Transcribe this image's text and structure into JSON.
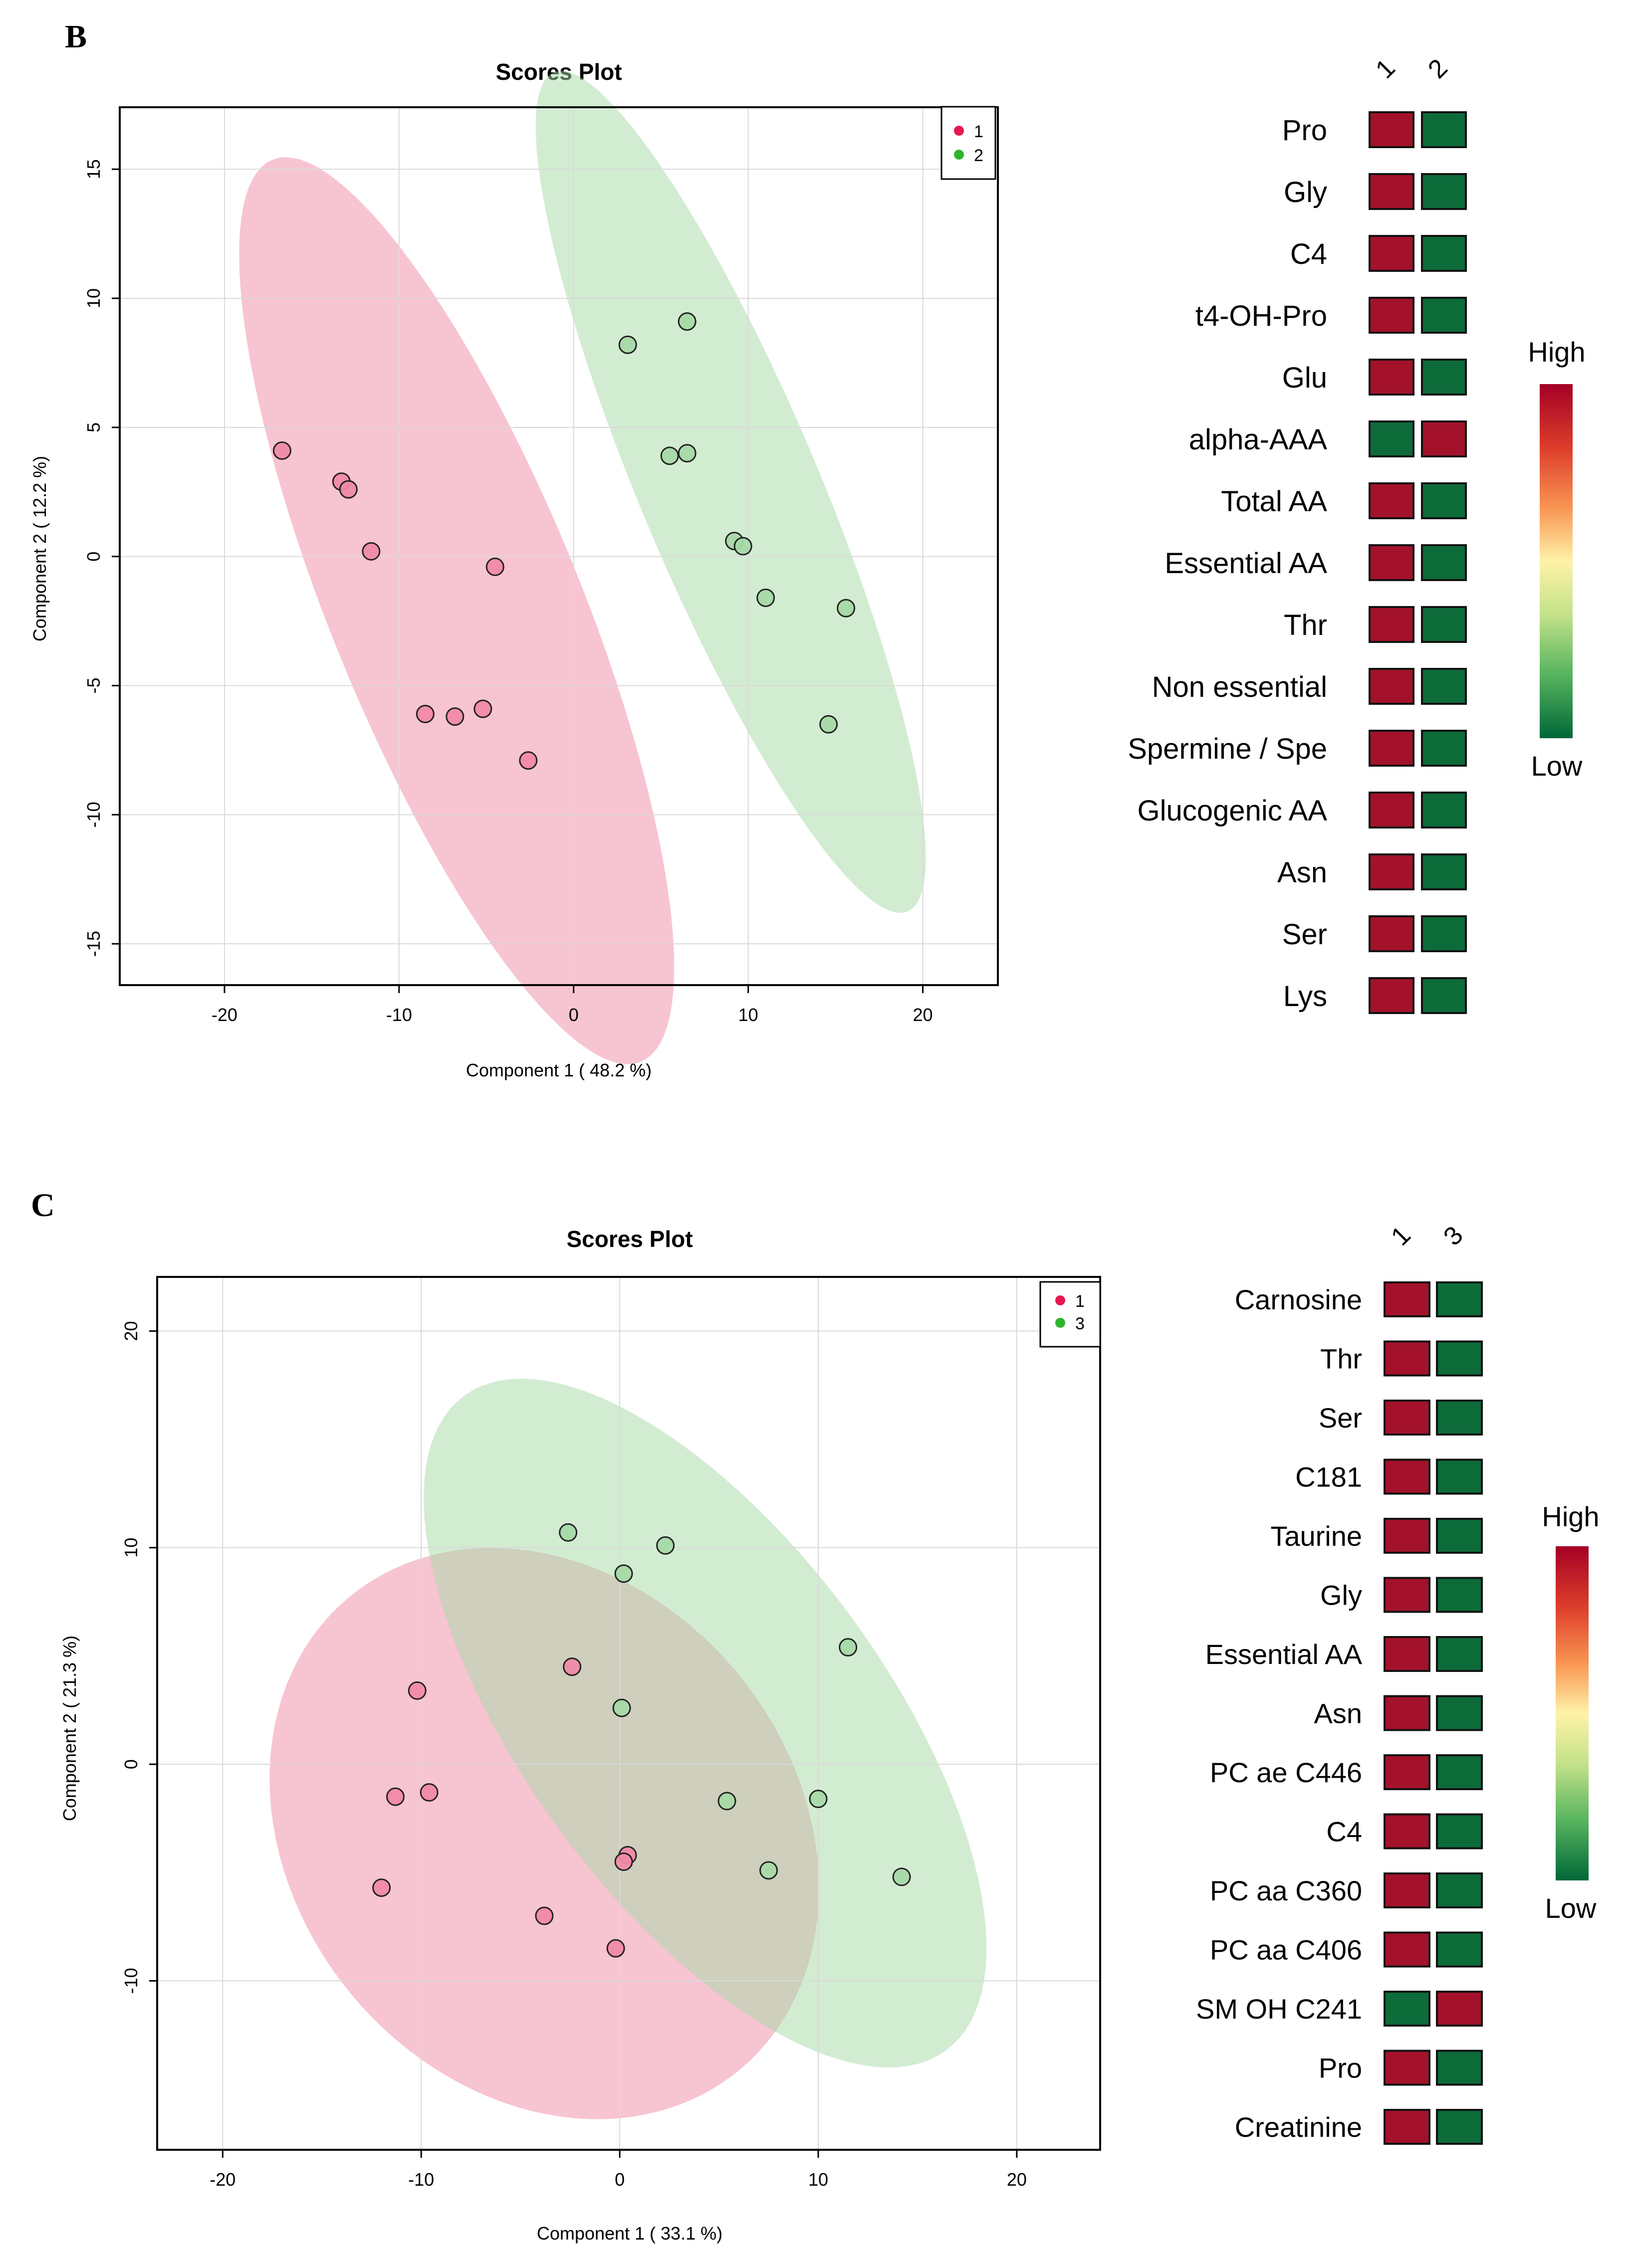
{
  "panels": [
    {
      "label": "B",
      "chart_data": {
        "type": "scatter",
        "title": "Scores Plot",
        "xlabel": "Component 1 ( 48.2 %)",
        "ylabel": "Component 2 ( 12.2 %)",
        "xlim": [
          -26,
          24.3
        ],
        "ylim": [
          -16.6,
          17.4
        ],
        "xticks": [
          -20,
          -10,
          0,
          10,
          20
        ],
        "yticks": [
          -15,
          -10,
          -5,
          0,
          5,
          10,
          15
        ],
        "grid": true,
        "legend_position": "top-right",
        "series": [
          {
            "name": "1",
            "color": "#e8174f",
            "ellipse_color": "#f08aa5",
            "points": [
              [
                -16.7,
                4.1
              ],
              [
                -13.3,
                2.9
              ],
              [
                -12.9,
                2.6
              ],
              [
                -11.6,
                0.2
              ],
              [
                -4.5,
                -0.4
              ],
              [
                -8.5,
                -6.1
              ],
              [
                -6.8,
                -6.2
              ],
              [
                -5.2,
                -5.9
              ],
              [
                -2.6,
                -7.9
              ]
            ],
            "ellipse": {
              "cx": -6.7,
              "cy": -2.1,
              "rx": 20.5,
              "ry": 6.6,
              "angle_deg": -57
            }
          },
          {
            "name": "2",
            "color": "#2cb52c",
            "ellipse_color": "#a6d9a6",
            "points": [
              [
                3.1,
                8.2
              ],
              [
                6.5,
                9.1
              ],
              [
                5.5,
                3.9
              ],
              [
                6.5,
                4.0
              ],
              [
                9.2,
                0.6
              ],
              [
                9.7,
                0.4
              ],
              [
                11.0,
                -1.6
              ],
              [
                15.6,
                -2.0
              ],
              [
                14.6,
                -6.5
              ]
            ],
            "ellipse": {
              "cx": 9.0,
              "cy": 2.5,
              "rx": 19.2,
              "ry": 4.7,
              "angle_deg": -57
            }
          }
        ]
      },
      "heatmap": {
        "columns": [
          "1",
          "2"
        ],
        "rows": [
          {
            "label": "Pro",
            "values": [
              "high",
              "low"
            ]
          },
          {
            "label": "Gly",
            "values": [
              "high",
              "low"
            ]
          },
          {
            "label": "C4",
            "values": [
              "high",
              "low"
            ]
          },
          {
            "label": "t4-OH-Pro",
            "values": [
              "high",
              "low"
            ]
          },
          {
            "label": "Glu",
            "values": [
              "high",
              "low"
            ]
          },
          {
            "label": "alpha-AAA",
            "values": [
              "low",
              "high"
            ]
          },
          {
            "label": "Total AA",
            "values": [
              "high",
              "low"
            ]
          },
          {
            "label": "Essential AA",
            "values": [
              "high",
              "low"
            ]
          },
          {
            "label": "Thr",
            "values": [
              "high",
              "low"
            ]
          },
          {
            "label": "Non essential",
            "values": [
              "high",
              "low"
            ]
          },
          {
            "label": "Spermine / Spe",
            "values": [
              "high",
              "low"
            ]
          },
          {
            "label": "Glucogenic AA",
            "values": [
              "high",
              "low"
            ]
          },
          {
            "label": "Asn",
            "values": [
              "high",
              "low"
            ]
          },
          {
            "label": "Ser",
            "values": [
              "high",
              "low"
            ]
          },
          {
            "label": "Lys",
            "values": [
              "high",
              "low"
            ]
          }
        ],
        "scale_high": "High",
        "scale_low": "Low"
      }
    },
    {
      "label": "C",
      "chart_data": {
        "type": "scatter",
        "title": "Scores Plot",
        "xlabel": "Component 1 ( 33.1 %)",
        "ylabel": "Component 2 ( 21.3 %)",
        "xlim": [
          -23.3,
          24.2
        ],
        "ylim": [
          -17.8,
          22.5
        ],
        "xticks": [
          -20,
          -10,
          0,
          10,
          20
        ],
        "yticks": [
          -10,
          0,
          10,
          20
        ],
        "grid": true,
        "legend_position": "top-right",
        "series": [
          {
            "name": "1",
            "color": "#e8174f",
            "ellipse_color": "#f08aa5",
            "points": [
              [
                -10.2,
                3.4
              ],
              [
                -11.3,
                -1.5
              ],
              [
                -9.6,
                -1.3
              ],
              [
                -12.0,
                -5.7
              ],
              [
                -2.4,
                4.5
              ],
              [
                0.4,
                -4.2
              ],
              [
                0.2,
                -4.5
              ],
              [
                -3.8,
                -7.0
              ],
              [
                -0.2,
                -8.5
              ]
            ],
            "ellipse": {
              "cx": -3.8,
              "cy": -3.2,
              "rx": 14.8,
              "ry": 12.1,
              "angle_deg": -38
            }
          },
          {
            "name": "3",
            "color": "#2cb52c",
            "ellipse_color": "#a6d9a6",
            "points": [
              [
                -2.6,
                10.7
              ],
              [
                2.3,
                10.1
              ],
              [
                0.2,
                8.8
              ],
              [
                11.5,
                5.4
              ],
              [
                0.1,
                2.6
              ],
              [
                5.4,
                -1.7
              ],
              [
                10.0,
                -1.6
              ],
              [
                7.5,
                -4.9
              ],
              [
                14.2,
                -5.2
              ]
            ],
            "ellipse": {
              "cx": 4.3,
              "cy": 1.9,
              "rx": 19.4,
              "ry": 8.8,
              "angle_deg": -50
            }
          }
        ]
      },
      "heatmap": {
        "columns": [
          "1",
          "3"
        ],
        "rows": [
          {
            "label": "Carnosine",
            "values": [
              "high",
              "low"
            ]
          },
          {
            "label": "Thr",
            "values": [
              "high",
              "low"
            ]
          },
          {
            "label": "Ser",
            "values": [
              "high",
              "low"
            ]
          },
          {
            "label": "C181",
            "values": [
              "high",
              "low"
            ]
          },
          {
            "label": "Taurine",
            "values": [
              "high",
              "low"
            ]
          },
          {
            "label": "Gly",
            "values": [
              "high",
              "low"
            ]
          },
          {
            "label": "Essential AA",
            "values": [
              "high",
              "low"
            ]
          },
          {
            "label": "Asn",
            "values": [
              "high",
              "low"
            ]
          },
          {
            "label": "PC ae C446",
            "values": [
              "high",
              "low"
            ]
          },
          {
            "label": "C4",
            "values": [
              "high",
              "low"
            ]
          },
          {
            "label": "PC aa C360",
            "values": [
              "high",
              "low"
            ]
          },
          {
            "label": "PC aa C406",
            "values": [
              "high",
              "low"
            ]
          },
          {
            "label": "SM OH C241",
            "values": [
              "low",
              "high"
            ]
          },
          {
            "label": "Pro",
            "values": [
              "high",
              "low"
            ]
          },
          {
            "label": "Creatinine",
            "values": [
              "high",
              "low"
            ]
          }
        ],
        "scale_high": "High",
        "scale_low": "Low"
      }
    }
  ],
  "colors": {
    "cell_high": "#a3122a",
    "cell_low": "#0d6b3a",
    "grid": "#d9d9d9",
    "axis": "#000000"
  }
}
